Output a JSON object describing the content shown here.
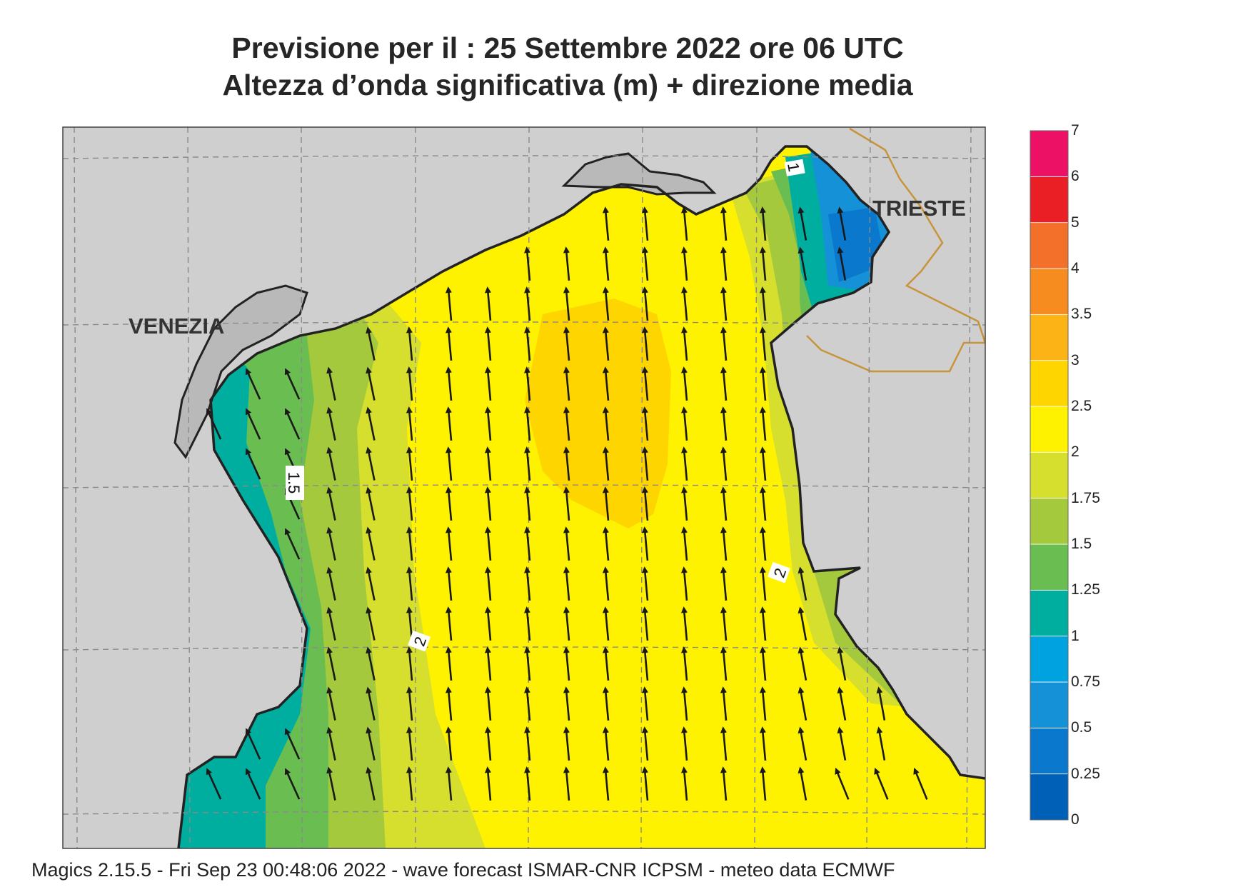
{
  "title": {
    "line1": "Previsione per il  :  25 Settembre 2022   ore 06 UTC",
    "line2": "Altezza d’onda significativa (m) + direzione media"
  },
  "footer": "Magics 2.15.5 - Fri Sep 23 00:48:06 2022 - wave forecast  ISMAR-CNR  ICPSM - meteo data    ECMWF",
  "cities": {
    "venezia": "VENEZIA",
    "trieste": "TRIESTE"
  },
  "contour_labels": {
    "label_1": "1",
    "label_15": "1.5",
    "label_2a": "2",
    "label_2b": "2"
  },
  "legend": {
    "levels": [
      "0",
      "0.25",
      "0.5",
      "0.75",
      "1",
      "1.25",
      "1.5",
      "1.75",
      "2",
      "2.5",
      "3",
      "3.5",
      "4",
      "5",
      "6",
      "7"
    ],
    "colors": [
      "#0060b8",
      "#0a78cc",
      "#1591d8",
      "#00a3e0",
      "#00aea0",
      "#6abd50",
      "#a5c93d",
      "#d6de2e",
      "#fff200",
      "#ffd500",
      "#fbb316",
      "#f68b1f",
      "#f3702a",
      "#ea1e25",
      "#ec1165"
    ]
  },
  "colors": {
    "land": "#cfcfcf",
    "lagoon": "#b9b9b9",
    "coast": "#222222",
    "border": "#c8943a",
    "arrow": "#1a1a1a",
    "grid": "#8a8a8a"
  }
}
